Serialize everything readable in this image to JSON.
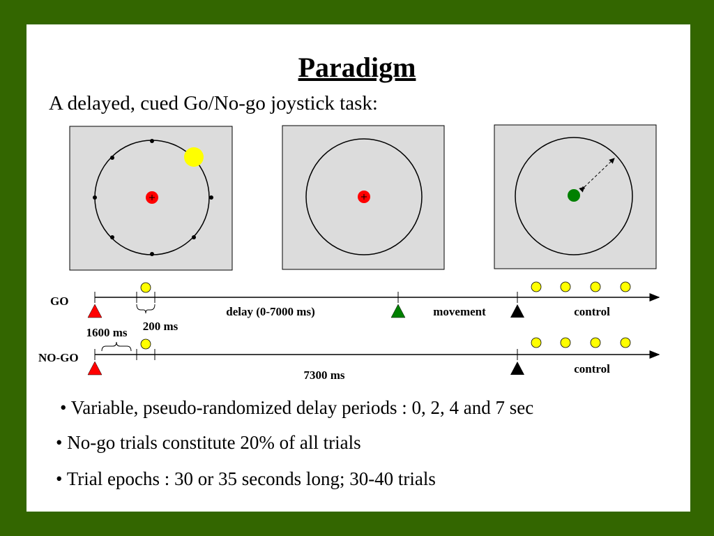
{
  "header": {
    "title": "Paradigm",
    "subtitle": "A delayed, cued Go/No-go joystick task:"
  },
  "timeline": {
    "go": {
      "label": "GO",
      "delay": "delay (0-7000 ms)",
      "movement": "movement",
      "control": "control"
    },
    "nogo": {
      "label": "NO-GO",
      "duration": "7300 ms",
      "control": "control"
    },
    "intervals": {
      "pre": "1600 ms",
      "cue": "200 ms"
    }
  },
  "bullets": [
    "• Variable, pseudo-randomized delay periods : 0, 2, 4 and 7 sec",
    "• No-go trials constitute 20% of all trials",
    "• Trial epochs : 30 or 35 seconds long; 30-40 trials"
  ]
}
